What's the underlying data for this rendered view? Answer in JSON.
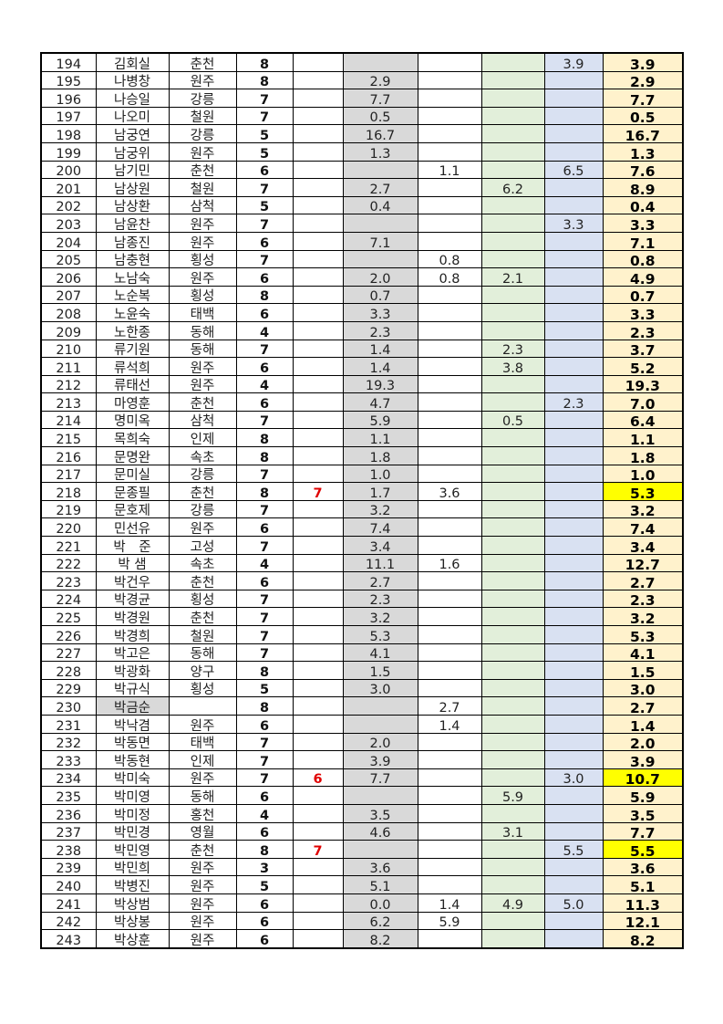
{
  "colors": {
    "gray": "#d9d9d9",
    "green": "#e2efda",
    "blue": "#d9e1f2",
    "total": "#fff2cc",
    "highlight": "#ffff00",
    "red_text": "#e00000"
  },
  "rows": [
    [
      "194",
      "김회실",
      "춘천",
      "8",
      "",
      "",
      "",
      "",
      "3.9",
      "3.9"
    ],
    [
      "195",
      "나병창",
      "원주",
      "8",
      "",
      "2.9",
      "",
      "",
      "",
      "2.9"
    ],
    [
      "196",
      "나승일",
      "강릉",
      "7",
      "",
      "7.7",
      "",
      "",
      "",
      "7.7"
    ],
    [
      "197",
      "나오미",
      "철원",
      "7",
      "",
      "0.5",
      "",
      "",
      "",
      "0.5"
    ],
    [
      "198",
      "남궁연",
      "강릉",
      "5",
      "",
      "16.7",
      "",
      "",
      "",
      "16.7"
    ],
    [
      "199",
      "남궁위",
      "원주",
      "5",
      "",
      "1.3",
      "",
      "",
      "",
      "1.3"
    ],
    [
      "200",
      "남기민",
      "춘천",
      "6",
      "",
      "",
      "1.1",
      "",
      "6.5",
      "7.6"
    ],
    [
      "201",
      "남상원",
      "철원",
      "7",
      "",
      "2.7",
      "",
      "6.2",
      "",
      "8.9"
    ],
    [
      "202",
      "남상환",
      "삼척",
      "5",
      "",
      "0.4",
      "",
      "",
      "",
      "0.4"
    ],
    [
      "203",
      "남윤찬",
      "원주",
      "7",
      "",
      "",
      "",
      "",
      "3.3",
      "3.3"
    ],
    [
      "204",
      "남종진",
      "원주",
      "6",
      "",
      "7.1",
      "",
      "",
      "",
      "7.1"
    ],
    [
      "205",
      "남충현",
      "횡성",
      "7",
      "",
      "",
      "0.8",
      "",
      "",
      "0.8"
    ],
    [
      "206",
      "노남숙",
      "원주",
      "6",
      "",
      "2.0",
      "0.8",
      "2.1",
      "",
      "4.9"
    ],
    [
      "207",
      "노순복",
      "횡성",
      "8",
      "",
      "0.7",
      "",
      "",
      "",
      "0.7"
    ],
    [
      "208",
      "노윤숙",
      "태백",
      "6",
      "",
      "3.3",
      "",
      "",
      "",
      "3.3"
    ],
    [
      "209",
      "노한종",
      "동해",
      "4",
      "",
      "2.3",
      "",
      "",
      "",
      "2.3"
    ],
    [
      "210",
      "류기원",
      "동해",
      "7",
      "",
      "1.4",
      "",
      "2.3",
      "",
      "3.7"
    ],
    [
      "211",
      "류석희",
      "원주",
      "6",
      "",
      "1.4",
      "",
      "3.8",
      "",
      "5.2"
    ],
    [
      "212",
      "류태선",
      "원주",
      "4",
      "",
      "19.3",
      "",
      "",
      "",
      "19.3"
    ],
    [
      "213",
      "마영훈",
      "춘천",
      "6",
      "",
      "4.7",
      "",
      "",
      "2.3",
      "7.0"
    ],
    [
      "214",
      "명미옥",
      "삼척",
      "7",
      "",
      "5.9",
      "",
      "0.5",
      "",
      "6.4"
    ],
    [
      "215",
      "목희숙",
      "인제",
      "8",
      "",
      "1.1",
      "",
      "",
      "",
      "1.1"
    ],
    [
      "216",
      "문명완",
      "속초",
      "8",
      "",
      "1.8",
      "",
      "",
      "",
      "1.8"
    ],
    [
      "217",
      "문미실",
      "강릉",
      "7",
      "",
      "1.0",
      "",
      "",
      "",
      "1.0"
    ],
    [
      "218",
      "문종필",
      "춘천",
      "8",
      "7",
      "1.7",
      "3.6",
      "",
      "",
      "5.3"
    ],
    [
      "219",
      "문호제",
      "강릉",
      "7",
      "",
      "3.2",
      "",
      "",
      "",
      "3.2"
    ],
    [
      "220",
      "민선유",
      "원주",
      "6",
      "",
      "7.4",
      "",
      "",
      "",
      "7.4"
    ],
    [
      "221",
      "박　준",
      "고성",
      "7",
      "",
      "3.4",
      "",
      "",
      "",
      "3.4"
    ],
    [
      "222",
      "박 샘",
      "속초",
      "4",
      "",
      "11.1",
      "1.6",
      "",
      "",
      "12.7"
    ],
    [
      "223",
      "박건우",
      "춘천",
      "6",
      "",
      "2.7",
      "",
      "",
      "",
      "2.7"
    ],
    [
      "224",
      "박경균",
      "횡성",
      "7",
      "",
      "2.3",
      "",
      "",
      "",
      "2.3"
    ],
    [
      "225",
      "박경원",
      "춘천",
      "7",
      "",
      "3.2",
      "",
      "",
      "",
      "3.2"
    ],
    [
      "226",
      "박경희",
      "철원",
      "7",
      "",
      "5.3",
      "",
      "",
      "",
      "5.3"
    ],
    [
      "227",
      "박고은",
      "동해",
      "7",
      "",
      "4.1",
      "",
      "",
      "",
      "4.1"
    ],
    [
      "228",
      "박광화",
      "양구",
      "8",
      "",
      "1.5",
      "",
      "",
      "",
      "1.5"
    ],
    [
      "229",
      "박규식",
      "횡성",
      "5",
      "",
      "3.0",
      "",
      "",
      "",
      "3.0"
    ],
    [
      "230",
      "박금순",
      "",
      "8",
      "",
      "",
      "2.7",
      "",
      "",
      "2.7"
    ],
    [
      "231",
      "박낙겸",
      "원주",
      "6",
      "",
      "",
      "1.4",
      "",
      "",
      "1.4"
    ],
    [
      "232",
      "박동면",
      "태백",
      "7",
      "",
      "2.0",
      "",
      "",
      "",
      "2.0"
    ],
    [
      "233",
      "박동현",
      "인제",
      "7",
      "",
      "3.9",
      "",
      "",
      "",
      "3.9"
    ],
    [
      "234",
      "박미숙",
      "원주",
      "7",
      "6",
      "7.7",
      "",
      "",
      "3.0",
      "10.7"
    ],
    [
      "235",
      "박미영",
      "동해",
      "6",
      "",
      "",
      "",
      "5.9",
      "",
      "5.9"
    ],
    [
      "236",
      "박미정",
      "홍천",
      "4",
      "",
      "3.5",
      "",
      "",
      "",
      "3.5"
    ],
    [
      "237",
      "박민경",
      "영월",
      "6",
      "",
      "4.6",
      "",
      "3.1",
      "",
      "7.7"
    ],
    [
      "238",
      "박민영",
      "춘천",
      "8",
      "7",
      "",
      "",
      "",
      "5.5",
      "5.5"
    ],
    [
      "239",
      "박민희",
      "원주",
      "3",
      "",
      "3.6",
      "",
      "",
      "",
      "3.6"
    ],
    [
      "240",
      "박병진",
      "원주",
      "5",
      "",
      "5.1",
      "",
      "",
      "",
      "5.1"
    ],
    [
      "241",
      "박상범",
      "원주",
      "6",
      "",
      "0.0",
      "1.4",
      "4.9",
      "5.0",
      "11.3"
    ],
    [
      "242",
      "박상봉",
      "원주",
      "6",
      "",
      "6.2",
      "5.9",
      "",
      "",
      "12.1"
    ],
    [
      "243",
      "박상훈",
      "원주",
      "6",
      "",
      "8.2",
      "",
      "",
      "",
      "8.2"
    ]
  ],
  "highlighted_rows": [
    "218",
    "234",
    "238"
  ],
  "gray_name_rows": [
    "230"
  ]
}
